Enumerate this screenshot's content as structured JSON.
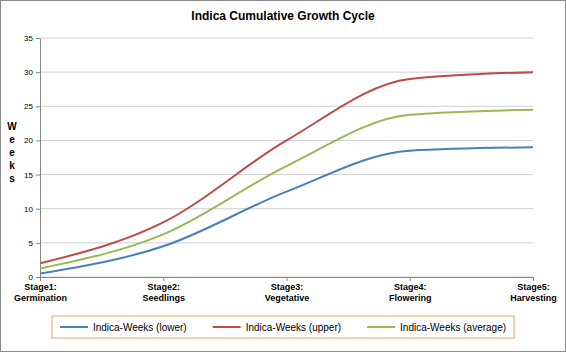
{
  "chart_data": {
    "type": "line",
    "title": "Indica Cumulative Growth Cycle",
    "y_label": "Weeks",
    "categories": [
      "Stage1: Germination",
      "Stage2: Seedlings",
      "Stage3: Vegetative",
      "Stage4: Flowering",
      "Stage5: Harvesting"
    ],
    "series": [
      {
        "name": "Indica-Weeks (lower)",
        "color": "#4a7ebb",
        "values": [
          0.5,
          4.5,
          12.5,
          18.5,
          19
        ]
      },
      {
        "name": "Indica-Weeks (upper)",
        "color": "#be4b48",
        "values": [
          2,
          8,
          20,
          29,
          30
        ]
      },
      {
        "name": "Indica-Weeks (average)",
        "color": "#98b954",
        "values": [
          1.25,
          6.25,
          16.25,
          23.75,
          24.5
        ]
      }
    ],
    "ylim": [
      0,
      35
    ],
    "yticks": [
      0,
      5,
      10,
      15,
      20,
      25,
      30,
      35
    ],
    "grid": true,
    "legend": "bottom",
    "line_style": "smooth"
  }
}
